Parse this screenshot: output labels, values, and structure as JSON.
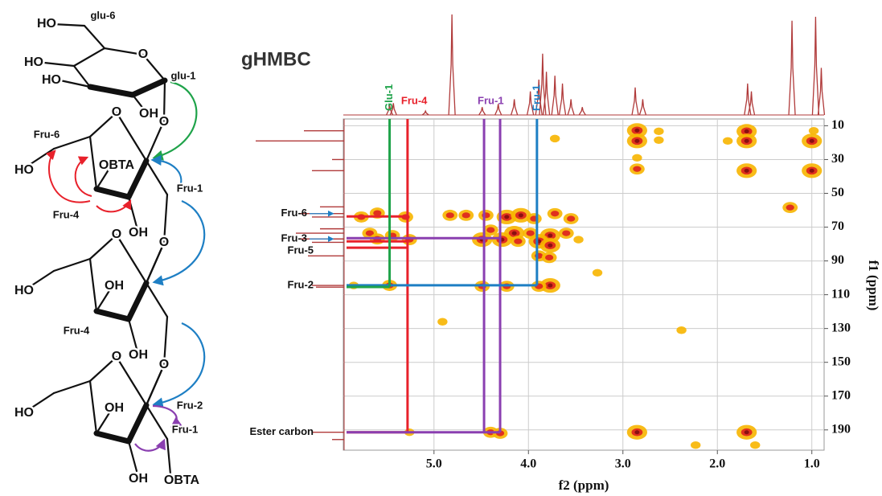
{
  "structure": {
    "labels": [
      "HO",
      "glu-6",
      "HO",
      "HO",
      "O",
      "glu-1",
      "OH",
      "O",
      "Fru-6",
      "O",
      "OBTA",
      "HO",
      "Fru-1",
      "Fru-4",
      "OH",
      "O",
      "O",
      "HO",
      "OH",
      "Fru-4",
      "OH",
      "O",
      "O",
      "HO",
      "OH",
      "Fru-2",
      "Fru-1",
      "OH",
      "OBTA"
    ]
  },
  "chart_data": {
    "type": "scatter",
    "title": "gHMBC",
    "x_label": "f2 (ppm)",
    "y_label": "f1 (ppm)",
    "xlim": [
      5.96,
      0.87
    ],
    "ylim": [
      6,
      202
    ],
    "xticks": [
      {
        "value": 5.0,
        "label": "5.0"
      },
      {
        "value": 4.0,
        "label": "4.0"
      },
      {
        "value": 3.0,
        "label": "3.0"
      },
      {
        "value": 2.0,
        "label": "2.0"
      },
      {
        "value": 1.0,
        "label": "1.0"
      }
    ],
    "yticks": [
      10,
      30,
      50,
      70,
      90,
      110,
      130,
      150,
      170,
      190
    ],
    "grid": true,
    "series": [
      {
        "color": "#f7b500",
        "core_color": "#e0301e",
        "x": [
          3.72,
          2.85,
          2.85,
          2.85,
          2.85,
          2.62,
          2.62,
          1.69,
          1.69,
          1.89,
          1.69,
          1.0,
          1.0,
          0.98,
          1.23,
          5.77,
          5.6,
          5.3,
          5.68,
          5.44,
          5.6,
          5.26,
          5.85,
          5.47,
          4.83,
          4.66,
          4.45,
          4.23,
          4.08,
          3.94,
          3.72,
          3.55,
          4.4,
          4.15,
          3.98,
          3.77,
          3.6,
          4.49,
          4.28,
          4.11,
          3.89,
          3.77,
          3.47,
          3.89,
          3.78,
          4.49,
          4.23,
          3.77,
          3.89,
          3.27,
          4.91,
          2.85,
          1.69,
          1.6,
          2.23,
          4.4,
          4.3,
          5.26,
          2.38
        ],
        "values": [
          17.6,
          12.8,
          19,
          29,
          35.6,
          13.3,
          18.5,
          13.3,
          19,
          19,
          36.6,
          19,
          36.6,
          13,
          58.4,
          64,
          61.7,
          64,
          73.6,
          75,
          77,
          77.4,
          104.5,
          104.5,
          63,
          63,
          63,
          64,
          63,
          65,
          62,
          65,
          71.7,
          73.6,
          73.6,
          75,
          73.6,
          77.4,
          77.4,
          78.4,
          78.4,
          80.8,
          77.4,
          87,
          88,
          105,
          105,
          104.5,
          105,
          97,
          126,
          191.4,
          191.4,
          199,
          199,
          191.4,
          192,
          191.4,
          131
        ],
        "sizes": [
          1,
          3,
          3,
          1,
          2,
          1,
          1,
          3,
          3,
          1,
          3,
          3,
          3,
          1,
          2,
          2,
          2,
          2,
          2,
          2,
          2,
          2,
          1,
          2,
          2,
          2,
          2,
          3,
          3,
          2,
          2,
          2,
          2,
          3,
          2,
          3,
          2,
          3,
          3,
          2,
          3,
          3,
          1,
          2,
          2,
          2,
          2,
          3,
          2,
          1,
          1,
          3,
          3,
          1,
          1,
          2,
          2,
          1,
          1
        ]
      }
    ],
    "projection_f2": {
      "color": "#b03a3a",
      "x": [
        5.47,
        5.43,
        5.09,
        4.81,
        4.49,
        4.32,
        4.15,
        3.98,
        3.89,
        3.85,
        3.81,
        3.72,
        3.64,
        3.55,
        3.43,
        2.87,
        2.79,
        1.68,
        1.64,
        1.21,
        0.96,
        0.9
      ],
      "values": [
        13,
        15,
        5,
        128,
        10,
        14,
        20,
        30,
        45,
        78,
        55,
        50,
        40,
        20,
        10,
        35,
        20,
        40,
        30,
        120,
        125,
        60
      ]
    },
    "projection_f1": {
      "color": "#b03a3a",
      "y": [
        13,
        19,
        30,
        36.6,
        58,
        62,
        64,
        71,
        73.6,
        77,
        79,
        87,
        104.5,
        105.5,
        191.4,
        195.7
      ],
      "values": [
        50,
        110,
        15,
        40,
        30,
        55,
        40,
        30,
        60,
        55,
        40,
        45,
        40,
        35,
        40,
        15
      ]
    },
    "correlations": [
      {
        "label": "Fru-4",
        "orientation": "horizontal",
        "color": "#e8212b",
        "x": [
          5.28
        ],
        "y": [
          63.7,
          78.4,
          82.2,
          191.4
        ]
      },
      {
        "label": "Fru-1",
        "orientation": "horizontal",
        "color": "#8a3fb0",
        "x": [
          4.47,
          4.3
        ],
        "y": [
          76.5,
          191.4
        ]
      },
      {
        "label": "Fru-1",
        "orientation": "vertical",
        "color": "#1e7fc4",
        "x": [
          3.91
        ],
        "y": [
          104.4
        ]
      },
      {
        "label": "Glu-1",
        "orientation": "vertical",
        "color": "#1fa34a",
        "x": [
          5.47
        ],
        "y": [
          105.4
        ]
      }
    ],
    "f1_labels": [
      {
        "text": "Fru-6",
        "y": 62,
        "arrow": true
      },
      {
        "text": "Fru-3",
        "y": 77,
        "arrow": true
      },
      {
        "text": "Fru-5",
        "y": 84,
        "arrow": false
      },
      {
        "text": "Fru-2",
        "y": 104.5,
        "arrow": false
      },
      {
        "text": "Ester carbon",
        "y": 191.4,
        "arrow": false
      }
    ]
  }
}
